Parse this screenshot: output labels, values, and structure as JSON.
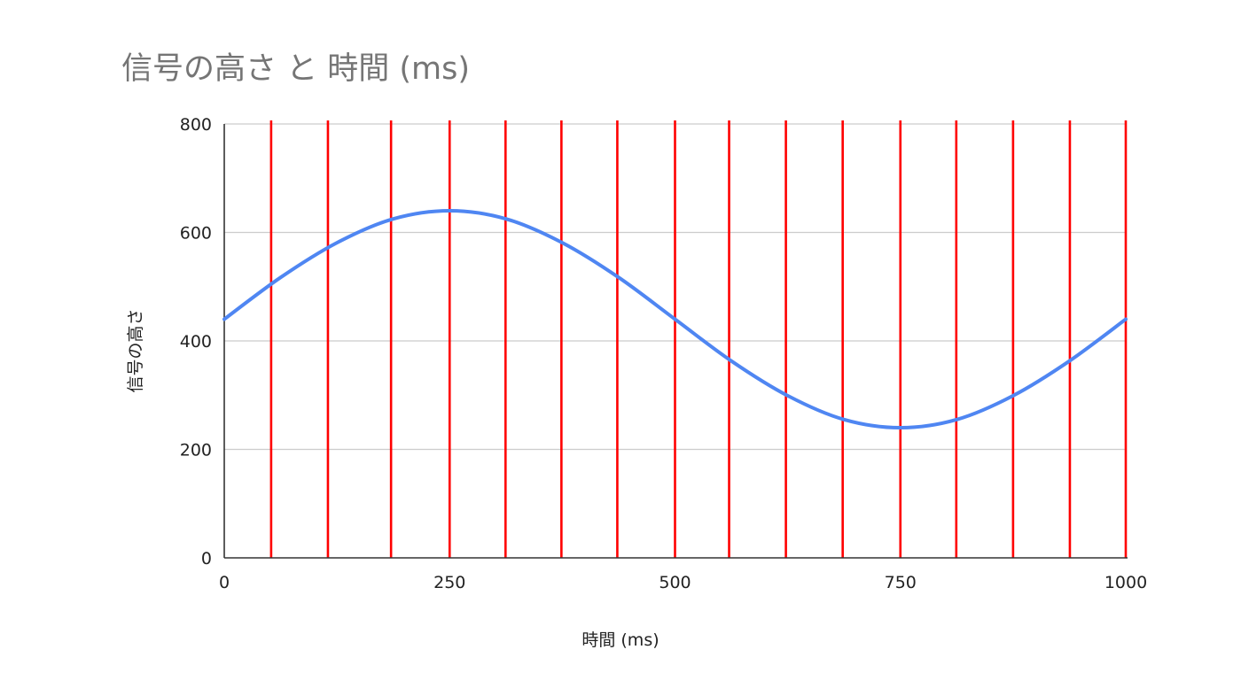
{
  "chart_data": {
    "type": "line",
    "title": "信号の高さ と 時間 (ms)",
    "xlabel": "時間 (ms)",
    "ylabel": "信号の高さ",
    "xlim": [
      0,
      1000
    ],
    "ylim": [
      0,
      800
    ],
    "x_ticks": [
      "0",
      "250",
      "500",
      "750",
      "1000"
    ],
    "y_ticks": [
      "0",
      "200",
      "400",
      "600",
      "800"
    ],
    "grid": true,
    "colors": {
      "series": "#4f86f2",
      "markers": "#ff0000",
      "title": "#757575"
    },
    "series": [
      {
        "x": [
          0,
          62.5,
          125,
          187.5,
          250,
          312.5,
          375,
          437.5,
          500,
          562.5,
          625,
          687.5,
          750,
          812.5,
          875,
          937.5,
          1000
        ],
        "values": [
          440,
          517,
          581,
          625,
          640,
          625,
          581,
          517,
          440,
          363,
          299,
          255,
          240,
          255,
          299,
          363,
          440
        ]
      }
    ],
    "vertical_markers": {
      "color": "#ff0000",
      "x": [
        52,
        115,
        185,
        250,
        312,
        374,
        436,
        500,
        560,
        623,
        686,
        750,
        812,
        875,
        938,
        1000
      ]
    }
  }
}
